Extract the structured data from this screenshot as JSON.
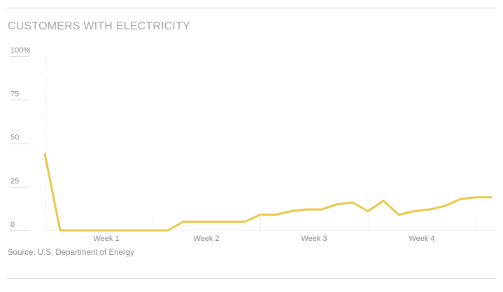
{
  "header": {
    "title": "CUSTOMERS WITH ELECTRICITY"
  },
  "footer": {
    "source": "Source: U.S. Department of Energy"
  },
  "colors": {
    "line": "#e8c84a",
    "axis": "#cccccc",
    "gridline": "#d9d9d9",
    "text": "#8a8a8a"
  },
  "chart_data": {
    "type": "line",
    "title": "CUSTOMERS WITH ELECTRICITY",
    "xlabel": "",
    "ylabel": "",
    "ylim": [
      0,
      100
    ],
    "y_ticks": [
      {
        "value": 0,
        "label": "0"
      },
      {
        "value": 25,
        "label": "25"
      },
      {
        "value": 50,
        "label": "50"
      },
      {
        "value": 75,
        "label": "75"
      },
      {
        "value": 100,
        "label": "100%"
      }
    ],
    "xlim": [
      0,
      29
    ],
    "week_labels": [
      {
        "label": "Week 1",
        "x": 4
      },
      {
        "label": "Week 2",
        "x": 10.5
      },
      {
        "label": "Week 3",
        "x": 17.5
      },
      {
        "label": "Week 4",
        "x": 24.5
      }
    ],
    "week_dividers": [
      0,
      7,
      14,
      21,
      28
    ],
    "grid": false,
    "series": [
      {
        "x": [
          0,
          1,
          2,
          3,
          4,
          5,
          6,
          7,
          8,
          9,
          10,
          11,
          12,
          13,
          14,
          15,
          16,
          17,
          18,
          19,
          20,
          21,
          22,
          23,
          24,
          25,
          26,
          27,
          28,
          29
        ],
        "values": [
          44,
          0,
          0,
          0,
          0,
          0,
          0,
          0,
          0,
          5,
          5,
          5,
          5,
          5,
          9,
          9,
          11,
          12,
          12,
          15,
          16,
          11,
          17,
          9,
          11,
          12,
          14,
          18,
          19,
          19
        ]
      }
    ]
  }
}
